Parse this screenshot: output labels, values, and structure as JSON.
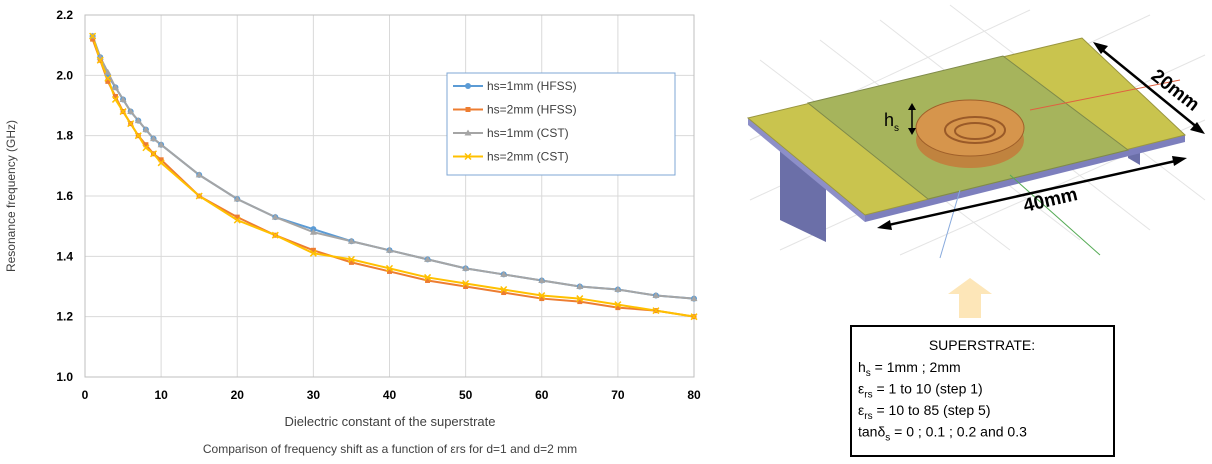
{
  "chart_data": {
    "type": "line",
    "y_label": "Resonance frequency (GHz)",
    "x_label": "Dielectric constant of the superstrate",
    "caption": "Comparison of frequency shift as a function of εrs for d=1 and  d=2 mm",
    "x": [
      1,
      2,
      3,
      4,
      5,
      6,
      7,
      8,
      9,
      10,
      15,
      20,
      25,
      30,
      35,
      40,
      45,
      50,
      55,
      60,
      65,
      70,
      75,
      80
    ],
    "xlim": [
      0,
      80
    ],
    "xticks": [
      0,
      10,
      20,
      30,
      40,
      50,
      60,
      70,
      80
    ],
    "ylim": [
      1.0,
      2.2
    ],
    "yticks": [
      {
        "value": 1.0,
        "label": "1.0"
      },
      1.2,
      1.4,
      1.6,
      1.8,
      {
        "value": 2.0,
        "label": "2.0"
      },
      2.2
    ],
    "grid": true,
    "legend": "upper right",
    "series": [
      {
        "name": "hs=1mm (HFSS)",
        "color": "#5b9bd5",
        "marker": "circle",
        "values": [
          2.13,
          2.06,
          2.0,
          1.96,
          1.92,
          1.88,
          1.85,
          1.82,
          1.79,
          1.77,
          1.67,
          1.59,
          1.53,
          1.49,
          1.45,
          1.42,
          1.39,
          1.36,
          1.34,
          1.32,
          1.3,
          1.29,
          1.27,
          1.26
        ]
      },
      {
        "name": "hs=2mm (HFSS)",
        "color": "#ed7d31",
        "marker": "square",
        "values": [
          2.12,
          2.05,
          1.98,
          1.93,
          1.88,
          1.84,
          1.8,
          1.77,
          1.74,
          1.72,
          1.6,
          1.53,
          1.47,
          1.42,
          1.38,
          1.35,
          1.32,
          1.3,
          1.28,
          1.26,
          1.25,
          1.23,
          1.22,
          1.2
        ]
      },
      {
        "name": "hs=1mm (CST)",
        "color": "#a5a5a5",
        "marker": "triangle",
        "values": [
          2.13,
          2.06,
          2.01,
          1.96,
          1.92,
          1.88,
          1.85,
          1.82,
          1.79,
          1.77,
          1.67,
          1.59,
          1.53,
          1.48,
          1.45,
          1.42,
          1.39,
          1.36,
          1.34,
          1.32,
          1.3,
          1.29,
          1.27,
          1.26
        ]
      },
      {
        "name": "hs=2mm (CST)",
        "color": "#ffc000",
        "marker": "x",
        "values": [
          2.13,
          2.05,
          1.99,
          1.92,
          1.88,
          1.84,
          1.8,
          1.76,
          1.74,
          1.71,
          1.6,
          1.52,
          1.47,
          1.41,
          1.39,
          1.36,
          1.33,
          1.31,
          1.29,
          1.27,
          1.26,
          1.24,
          1.22,
          1.2
        ]
      }
    ]
  },
  "diagram": {
    "width_label": "20mm",
    "length_label": "40mm",
    "height_label": {
      "main": "h",
      "sub": "s"
    },
    "superstrate": {
      "title": "SUPERSTRATE:",
      "lines": [
        {
          "main": "h",
          "sub": "s",
          "rest": " = 1mm ; 2mm"
        },
        {
          "main": "ε",
          "sub": "rs",
          "rest": " = 1 to 10 (step 1)"
        },
        {
          "main": "ε",
          "sub": "rs",
          "rest": " = 10 to 85 (step 5)"
        },
        {
          "main": "tanδ",
          "sub": "s",
          "rest": " = 0 ; 0.1 ; 0.2 and 0.3"
        }
      ]
    }
  }
}
